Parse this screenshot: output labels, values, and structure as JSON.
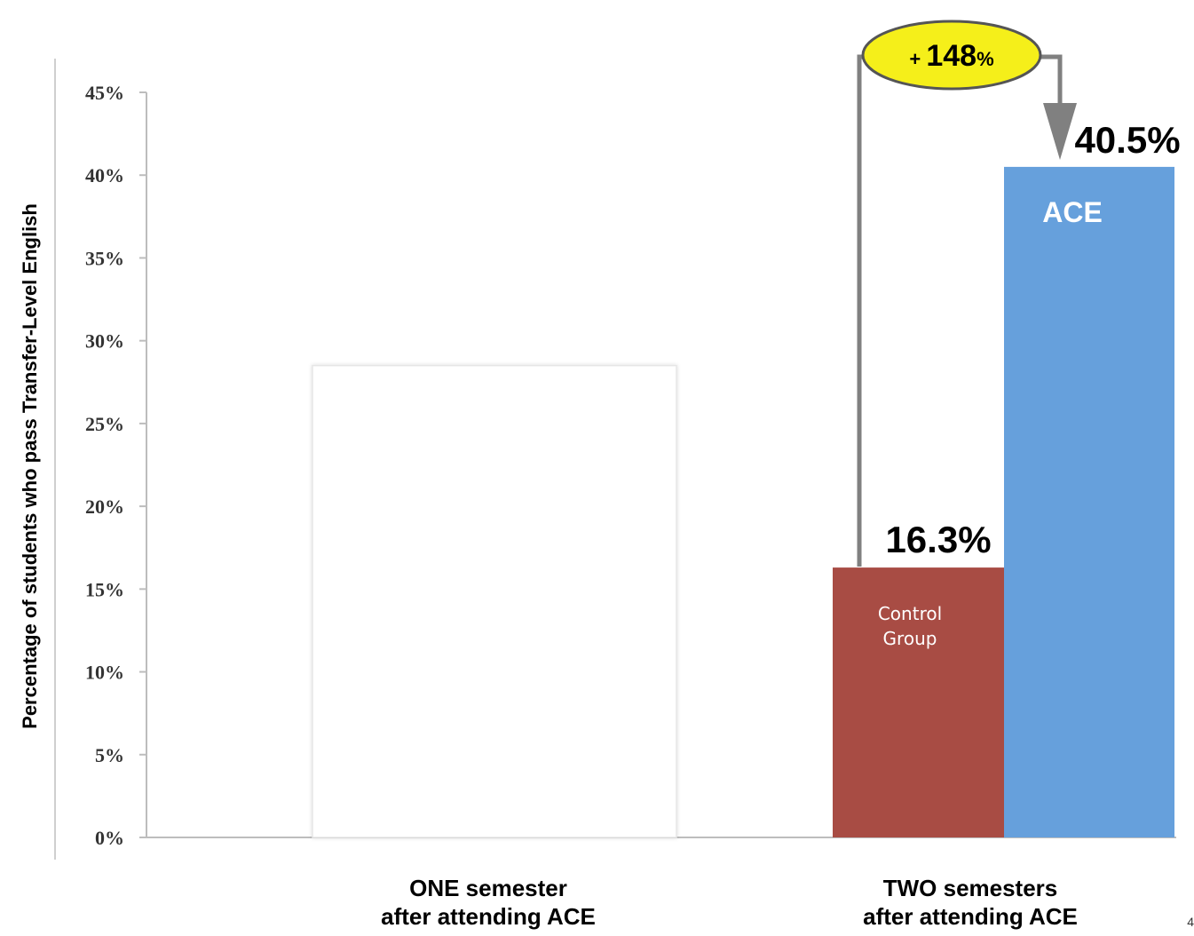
{
  "chart_data": {
    "type": "bar",
    "ylabel": "Percentage of students who pass Transfer-Level English",
    "ylim": [
      0,
      45
    ],
    "yticks": [
      "0%",
      "5%",
      "10%",
      "15%",
      "20%",
      "25%",
      "30%",
      "35%",
      "40%",
      "45%"
    ],
    "grid": false,
    "categories": [
      {
        "line1": "ONE semester",
        "line2": "after attending ACE"
      },
      {
        "line1": "TWO semesters",
        "line2": "after attending ACE"
      }
    ],
    "series": [
      {
        "name": "Control Group",
        "color": "#a84c44",
        "values": [
          null,
          16.3
        ],
        "value_label": "16.3%"
      },
      {
        "name": "ACE",
        "color": "#66a0dc",
        "values": [
          null,
          40.5
        ],
        "value_label": "40.5%"
      }
    ],
    "placeholder_bar": {
      "category": 0,
      "value": 28.5,
      "color": "#ffffff"
    },
    "annotation": {
      "plus": "+",
      "number": "148",
      "percent": "%",
      "fill": "#f5ef1a"
    }
  },
  "page_number": "4"
}
